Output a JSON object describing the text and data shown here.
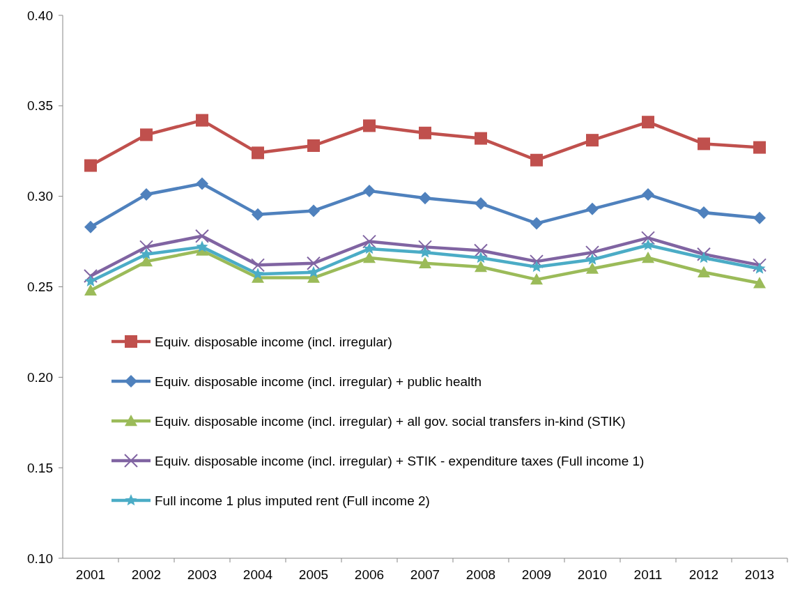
{
  "chart_data": {
    "type": "line",
    "categories": [
      "2001",
      "2002",
      "2003",
      "2004",
      "2005",
      "2006",
      "2007",
      "2008",
      "2009",
      "2010",
      "2011",
      "2012",
      "2013"
    ],
    "ylim": [
      0.1,
      0.4
    ],
    "yticks": [
      {
        "value": 0.1,
        "label": "0.10"
      },
      {
        "value": 0.15,
        "label": "0.15"
      },
      {
        "value": 0.2,
        "label": "0.20"
      },
      {
        "value": 0.25,
        "label": "0.25"
      },
      {
        "value": 0.3,
        "label": "0.30"
      },
      {
        "value": 0.35,
        "label": "0.35"
      },
      {
        "value": 0.4,
        "label": "0.40"
      }
    ],
    "grid": false,
    "legend": "bottom left",
    "series": [
      {
        "name": "Equiv. disposable income (incl. irregular)",
        "color": "#c0504d",
        "marker": "square",
        "values": [
          0.317,
          0.334,
          0.342,
          0.324,
          0.328,
          0.339,
          0.335,
          0.332,
          0.32,
          0.331,
          0.341,
          0.329,
          0.327
        ]
      },
      {
        "name": "Equiv. disposable income (incl. irregular) +  public health",
        "color": "#4f81bd",
        "marker": "diamond",
        "values": [
          0.283,
          0.301,
          0.307,
          0.29,
          0.292,
          0.303,
          0.299,
          0.296,
          0.285,
          0.293,
          0.301,
          0.291,
          0.288
        ]
      },
      {
        "name": "Equiv. disposable income (incl. irregular) +  all gov. social transfers in-kind (STIK)",
        "color": "#9bbb59",
        "marker": "triangle",
        "values": [
          0.248,
          0.264,
          0.27,
          0.255,
          0.255,
          0.266,
          0.263,
          0.261,
          0.254,
          0.26,
          0.266,
          0.258,
          0.252
        ]
      },
      {
        "name": "Equiv. disposable income (incl. irregular) + STIK - expenditure taxes (Full income 1)",
        "color": "#8064a2",
        "marker": "cross",
        "values": [
          0.256,
          0.272,
          0.278,
          0.262,
          0.263,
          0.275,
          0.272,
          0.27,
          0.264,
          0.269,
          0.277,
          0.268,
          0.262
        ]
      },
      {
        "name": "Full income 1 plus imputed rent (Full income 2)",
        "color": "#4bacc6",
        "marker": "star",
        "values": [
          0.253,
          0.268,
          0.272,
          0.257,
          0.258,
          0.271,
          0.269,
          0.266,
          0.261,
          0.265,
          0.273,
          0.266,
          0.26
        ]
      }
    ]
  }
}
